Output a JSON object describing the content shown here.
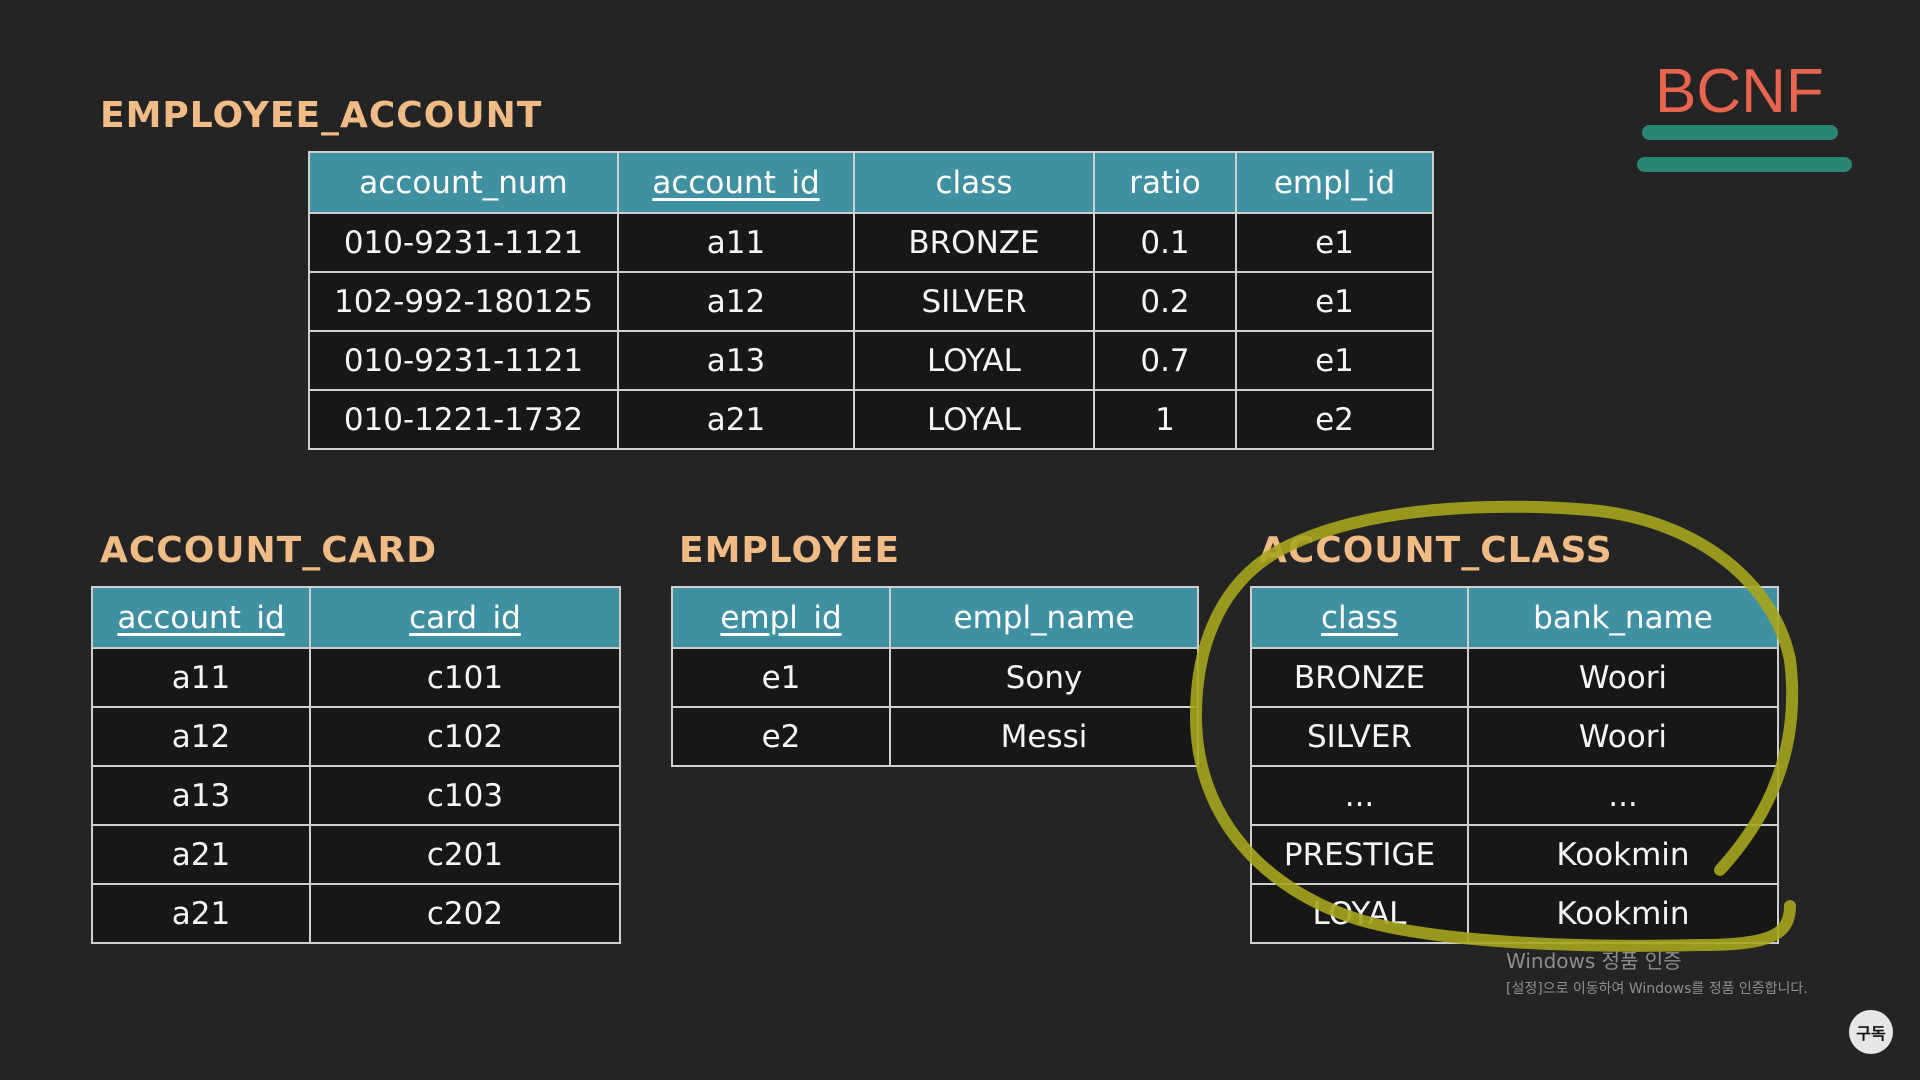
{
  "badge": {
    "text": "BCNF",
    "color": "#e8644e"
  },
  "employee_account": {
    "title": "EMPLOYEE_ACCOUNT",
    "columns": [
      "account_num",
      "account_id",
      "class",
      "ratio",
      "empl_id"
    ],
    "primary_key_columns": [
      "account_id"
    ],
    "rows": [
      [
        "010-9231-1121",
        "a11",
        "BRONZE",
        "0.1",
        "e1"
      ],
      [
        "102-992-180125",
        "a12",
        "SILVER",
        "0.2",
        "e1"
      ],
      [
        "010-9231-1121",
        "a13",
        "LOYAL",
        "0.7",
        "e1"
      ],
      [
        "010-1221-1732",
        "a21",
        "LOYAL",
        "1",
        "e2"
      ]
    ]
  },
  "account_card": {
    "title": "ACCOUNT_CARD",
    "columns": [
      "account_id",
      "card_id"
    ],
    "primary_key_columns": [
      "account_id",
      "card_id"
    ],
    "rows": [
      [
        "a11",
        "c101"
      ],
      [
        "a12",
        "c102"
      ],
      [
        "a13",
        "c103"
      ],
      [
        "a21",
        "c201"
      ],
      [
        "a21",
        "c202"
      ]
    ]
  },
  "employee": {
    "title": "EMPLOYEE",
    "columns": [
      "empl_id",
      "empl_name"
    ],
    "primary_key_columns": [
      "empl_id"
    ],
    "rows": [
      [
        "e1",
        "Sony"
      ],
      [
        "e2",
        "Messi"
      ]
    ]
  },
  "account_class": {
    "title": "ACCOUNT_CLASS",
    "columns": [
      "class",
      "bank_name"
    ],
    "primary_key_columns": [
      "class"
    ],
    "rows": [
      [
        "BRONZE",
        "Woori"
      ],
      [
        "SILVER",
        "Woori"
      ],
      [
        "...",
        "..."
      ],
      [
        "PRESTIGE",
        "Kookmin"
      ],
      [
        "LOYAL",
        "Kookmin"
      ]
    ]
  },
  "windows_watermark": {
    "title": "Windows 정품 인증",
    "subtitle": "[설정]으로 이동하여 Windows를 정품 인증합니다."
  },
  "subscribe_button": {
    "label": "구독"
  },
  "colors": {
    "background": "#242424",
    "table_header": "#3f91a1",
    "table_title": "#f1bb86",
    "highlight_circle": "#a6a51e",
    "badge_underline": "#2a8575"
  }
}
